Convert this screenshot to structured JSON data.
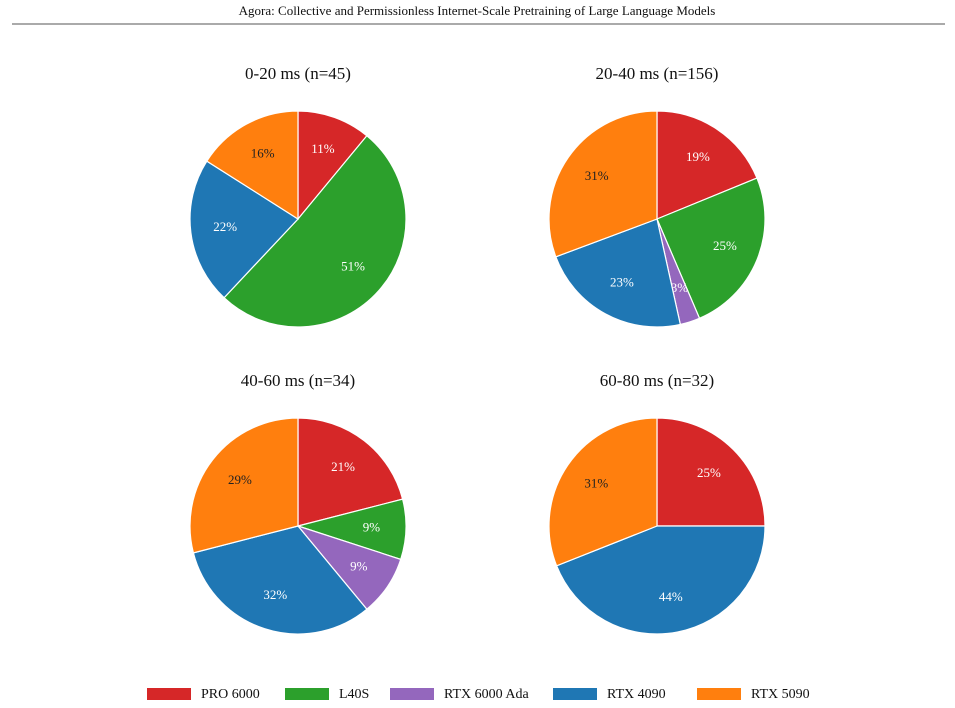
{
  "header": "Agora: Collective and Permissionless Internet-Scale Pretraining of Large Language Models",
  "legend": [
    {
      "name": "PRO 6000",
      "color": "#d62728"
    },
    {
      "name": "L40S",
      "color": "#2ca02c"
    },
    {
      "name": "RTX 6000 Ada",
      "color": "#9467bd"
    },
    {
      "name": "RTX 4090",
      "color": "#1f77b4"
    },
    {
      "name": "RTX 5090",
      "color": "#ff7f0e"
    }
  ],
  "chart_data": [
    {
      "type": "pie",
      "title": "0-20 ms   (n=45)",
      "values": [
        11,
        51,
        null,
        22,
        16
      ],
      "value_labels": [
        "11%",
        "51%",
        null,
        "22%",
        "16%"
      ]
    },
    {
      "type": "pie",
      "title": "20-40 ms   (n=156)",
      "values": [
        19,
        25,
        3,
        23,
        31
      ],
      "value_labels": [
        "19%",
        "25%",
        "3%",
        "23%",
        "31%"
      ]
    },
    {
      "type": "pie",
      "title": "40-60 ms   (n=34)",
      "values": [
        21,
        9,
        9,
        32,
        29
      ],
      "value_labels": [
        "21%",
        "9%",
        "9%",
        "32%",
        "29%"
      ]
    },
    {
      "type": "pie",
      "title": "60-80 ms   (n=32)",
      "values": [
        25,
        null,
        null,
        44,
        31
      ],
      "value_labels": [
        "25%",
        null,
        null,
        "44%",
        "31%"
      ]
    }
  ]
}
